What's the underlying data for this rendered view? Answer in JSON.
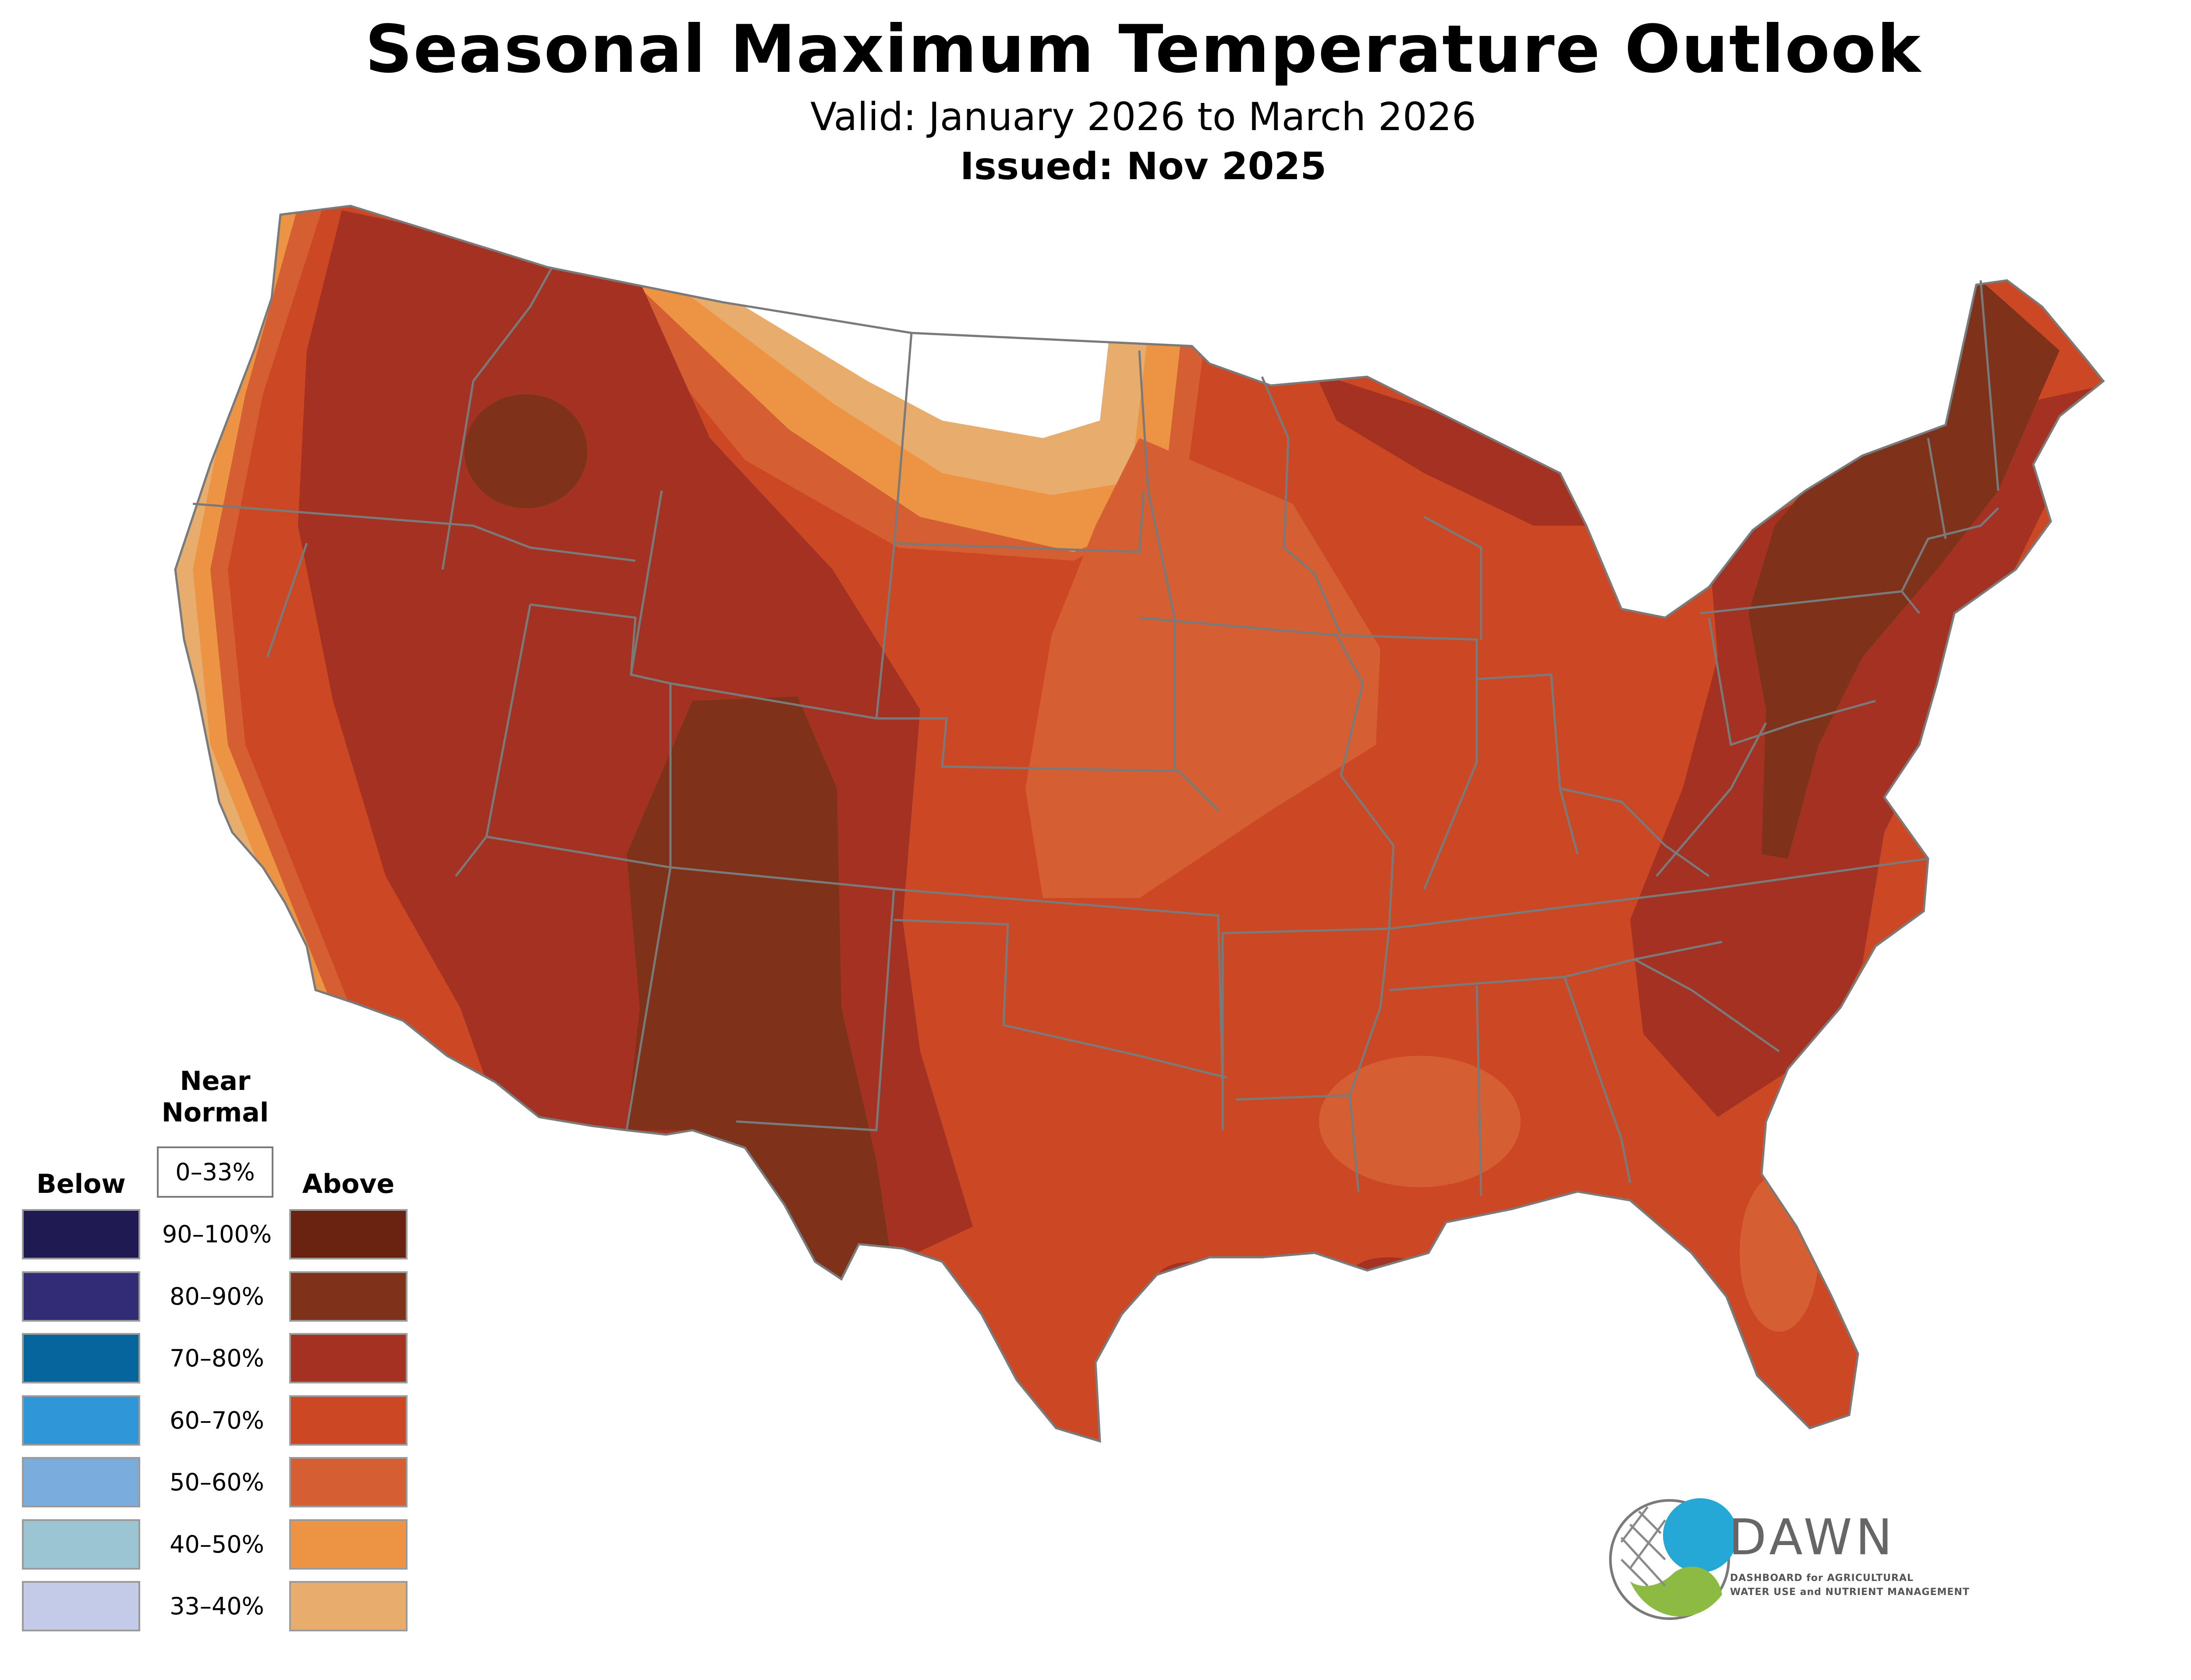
{
  "header": {
    "title": "Seasonal Maximum Temperature Outlook",
    "valid": "Valid: January 2026 to March 2026",
    "issued": "Issued: Nov 2025"
  },
  "legend": {
    "near_normal_label_line1": "Near",
    "near_normal_label_line2": "Normal",
    "near_normal_range": "0–33%",
    "below_label": "Below",
    "above_label": "Above",
    "rows": [
      {
        "range": "90–100%",
        "below_color": "#1f1a52",
        "above_color": "#692310"
      },
      {
        "range": "80–90%",
        "below_color": "#322b76",
        "above_color": "#7d3219"
      },
      {
        "range": "70–80%",
        "below_color": "#06659c",
        "above_color": "#a33222"
      },
      {
        "range": "60–70%",
        "below_color": "#3097d6",
        "above_color": "#cc4824"
      },
      {
        "range": "50–60%",
        "below_color": "#7aaddd",
        "above_color": "#d55f32"
      },
      {
        "range": "40–50%",
        "below_color": "#9cc5d2",
        "above_color": "#ec9444"
      },
      {
        "range": "33–40%",
        "below_color": "#c4cbe8",
        "above_color": "#e8ac6c"
      }
    ]
  },
  "logo": {
    "name": "DAWN",
    "tagline_line1": "DASHBOARD for AGRICULTURAL",
    "tagline_line2": "WATER USE and NUTRIENT MANAGEMENT"
  },
  "map": {
    "region": "Contiguous United States",
    "state_border_color": "#7a7a7a"
  }
}
